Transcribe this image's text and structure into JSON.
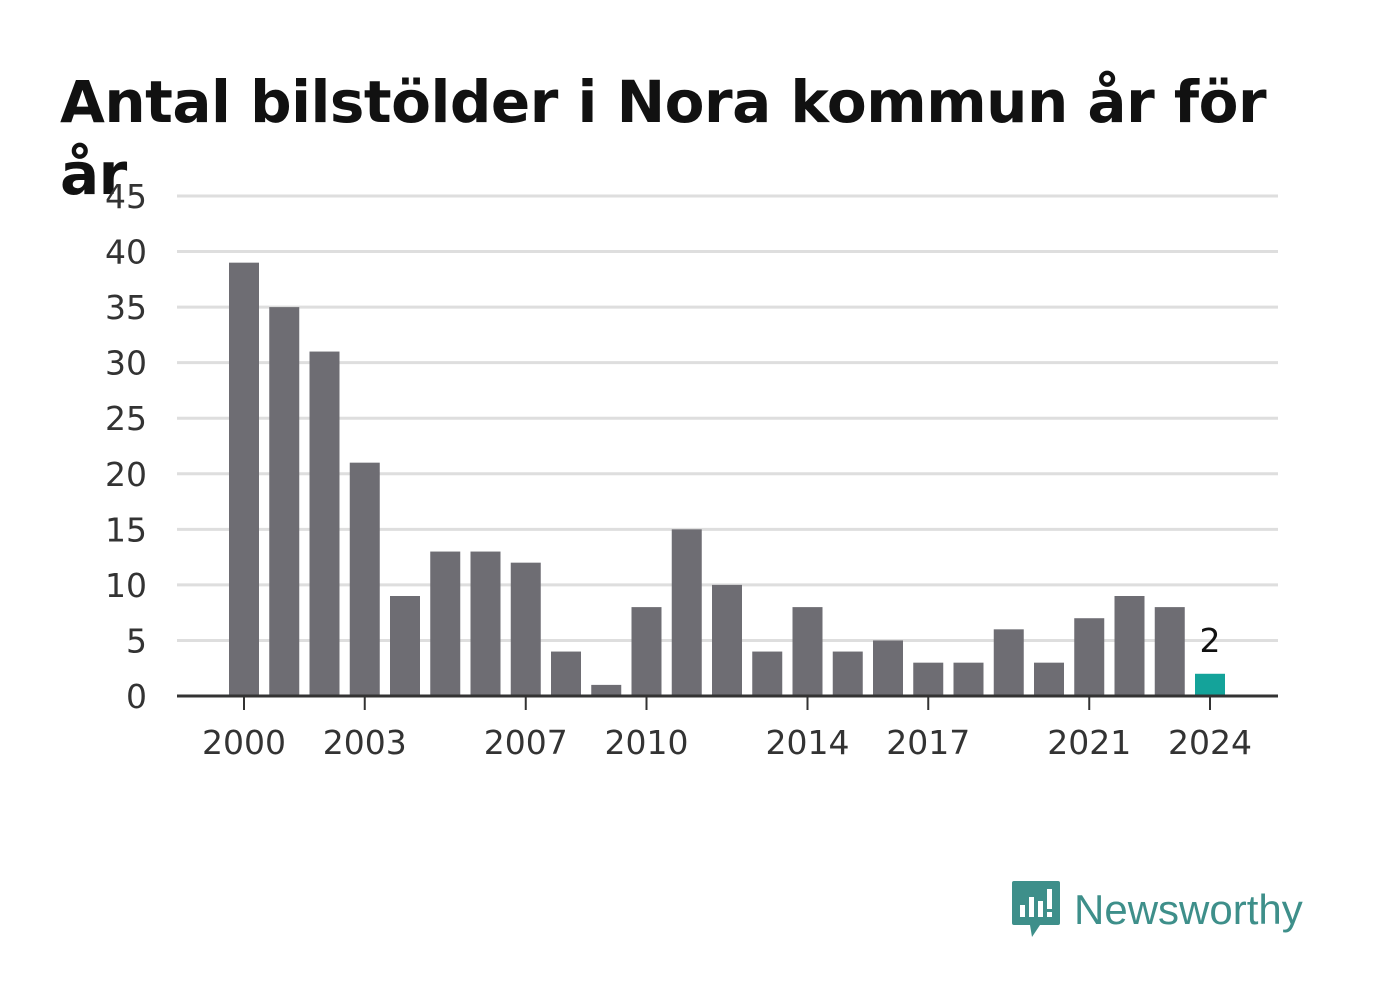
{
  "title": "Antal bilstölder i Nora kommun år för år",
  "brand": {
    "name": "Newsworthy",
    "icon": "newsworthy-logo-icon"
  },
  "colors": {
    "bar": "#6e6d73",
    "highlight": "#14a39a",
    "grid": "#dedede",
    "axis": "#333333",
    "text": "#333333",
    "brand": "#3e8f8a"
  },
  "chart_data": {
    "type": "bar",
    "categories": [
      "2000",
      "2001",
      "2002",
      "2003",
      "2004",
      "2005",
      "2006",
      "2007",
      "2008",
      "2009",
      "2010",
      "2011",
      "2012",
      "2013",
      "2014",
      "2015",
      "2016",
      "2017",
      "2018",
      "2019",
      "2020",
      "2021",
      "2022",
      "2023",
      "2024"
    ],
    "values": [
      39,
      35,
      31,
      21,
      9,
      13,
      13,
      12,
      4,
      1,
      8,
      15,
      10,
      4,
      8,
      4,
      5,
      3,
      3,
      6,
      3,
      7,
      9,
      8,
      2
    ],
    "x_tick_labels": [
      "2000",
      "2003",
      "2007",
      "2010",
      "2014",
      "2017",
      "2021",
      "2024"
    ],
    "y_ticks": [
      0,
      5,
      10,
      15,
      20,
      25,
      30,
      35,
      40,
      45
    ],
    "ylim": [
      0,
      45
    ],
    "highlight_index": 24,
    "annotation": "2",
    "grid": true,
    "legend": "none"
  }
}
